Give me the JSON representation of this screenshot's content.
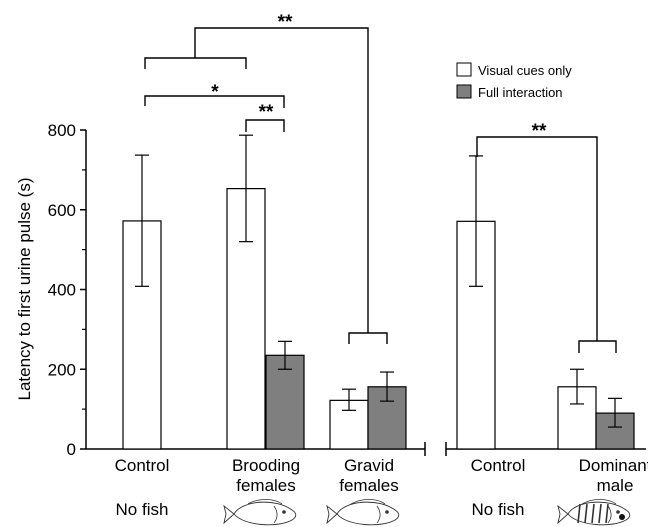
{
  "chart_data": {
    "type": "bar",
    "ylabel": "Latency to first urine pulse (s)",
    "ylim": [
      0,
      800
    ],
    "yticks": [
      0,
      200,
      400,
      600,
      800
    ],
    "legend": {
      "placement": "top-right",
      "entries": [
        "Visual cues only",
        "Full interaction"
      ]
    },
    "series_colors": {
      "visual": "#ffffff",
      "full": "#7f7f7f"
    },
    "panels": [
      {
        "groups": [
          {
            "label": "Control",
            "sublabel": "No fish",
            "fish_icon": "",
            "visual": 572,
            "visual_err": [
              408,
              737
            ],
            "full": null
          },
          {
            "label": "Brooding females",
            "sublabel": "",
            "fish_icon": "brooding-female-fish-icon",
            "visual": 653,
            "visual_err": [
              520,
              787
            ],
            "full": 235,
            "full_err": [
              200,
              270
            ]
          },
          {
            "label": "Gravid females",
            "sublabel": "",
            "fish_icon": "gravid-female-fish-icon",
            "visual": 122,
            "visual_err": [
              97,
              150
            ],
            "full": 156,
            "full_err": [
              120,
              193
            ]
          }
        ]
      },
      {
        "groups": [
          {
            "label": "Control",
            "sublabel": "No fish",
            "fish_icon": "",
            "visual": 571,
            "visual_err": [
              408,
              735
            ],
            "full": null
          },
          {
            "label": "Dominant male",
            "sublabel": "",
            "fish_icon": "dominant-male-fish-icon",
            "visual": 156,
            "visual_err": [
              113,
              200
            ],
            "full": 90,
            "full_err": [
              55,
              127
            ]
          }
        ]
      }
    ],
    "annotations": [
      {
        "text": "**",
        "between": "Control & Brooding females vs Gravid females (panel 1)"
      },
      {
        "text": "*",
        "between": "Control vs Brooding females full interaction (panel 1)"
      },
      {
        "text": "**",
        "between": "Brooding females visual vs full interaction (panel 1)"
      },
      {
        "text": "**",
        "between": "Control vs Dominant male (panel 2)"
      }
    ]
  }
}
